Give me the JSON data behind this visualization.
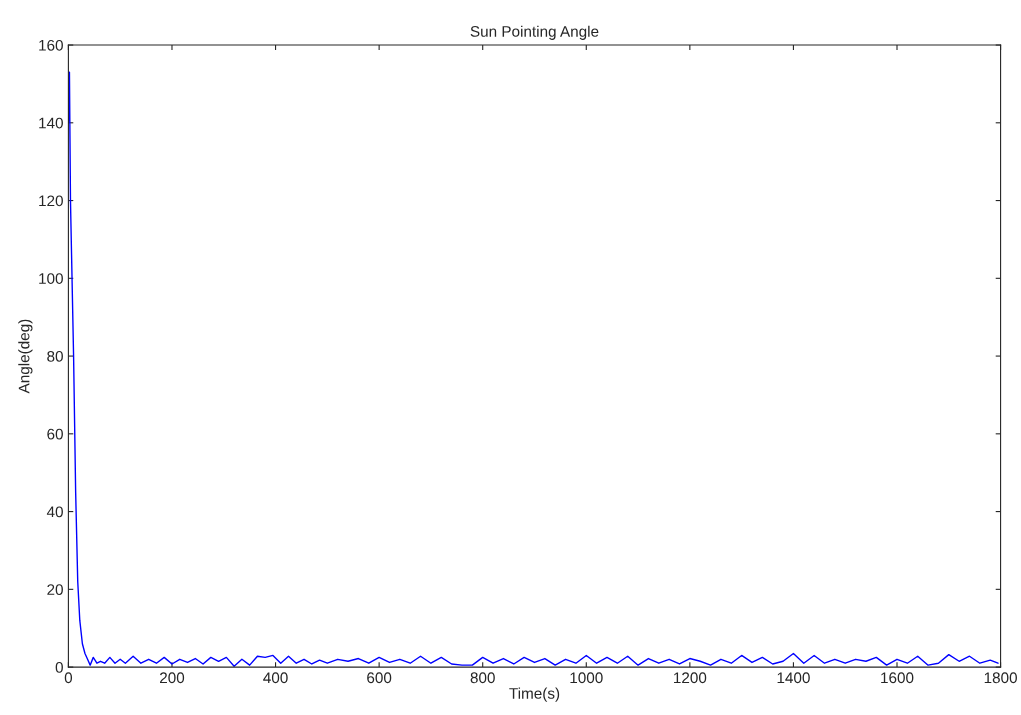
{
  "chart_data": {
    "type": "line",
    "title": "Sun Pointing Angle",
    "xlabel": "Time(s)",
    "ylabel": "Angle(deg)",
    "xlim": [
      0,
      1800
    ],
    "ylim": [
      0,
      160
    ],
    "xticks": [
      0,
      200,
      400,
      600,
      800,
      1000,
      1200,
      1400,
      1600,
      1800
    ],
    "yticks": [
      0,
      20,
      40,
      60,
      80,
      100,
      120,
      140,
      160
    ],
    "grid": false,
    "legend": false,
    "series": [
      {
        "color": "#0000ff",
        "line_style": "solid",
        "x": [
          0,
          2,
          4,
          7,
          10,
          14,
          18,
          22,
          27,
          32,
          37,
          42,
          48,
          55,
          62,
          70,
          80,
          90,
          100,
          110,
          125,
          140,
          155,
          170,
          185,
          200,
          215,
          230,
          245,
          260,
          275,
          290,
          305,
          320,
          335,
          350,
          365,
          380,
          395,
          410,
          425,
          440,
          455,
          470,
          485,
          500,
          520,
          540,
          560,
          580,
          600,
          620,
          640,
          660,
          680,
          700,
          720,
          740,
          760,
          780,
          800,
          820,
          840,
          860,
          880,
          900,
          920,
          940,
          960,
          980,
          1000,
          1020,
          1040,
          1060,
          1080,
          1100,
          1120,
          1140,
          1160,
          1180,
          1200,
          1220,
          1240,
          1260,
          1280,
          1300,
          1320,
          1340,
          1360,
          1380,
          1400,
          1420,
          1440,
          1460,
          1480,
          1500,
          1520,
          1540,
          1560,
          1580,
          1600,
          1620,
          1640,
          1660,
          1680,
          1700,
          1720,
          1740,
          1760,
          1780,
          1795
        ],
        "values": [
          140,
          153,
          120,
          100,
          80,
          45,
          22,
          12,
          6,
          3.5,
          2,
          0.5,
          2.5,
          1,
          1.5,
          1,
          2.5,
          1,
          2,
          1,
          2.8,
          1,
          2,
          1,
          2.5,
          0.8,
          2,
          1.2,
          2.2,
          0.8,
          2.5,
          1.5,
          2.5,
          0.2,
          2,
          0.5,
          2.8,
          2.5,
          3,
          1,
          2.8,
          1,
          2,
          0.8,
          1.8,
          1,
          2,
          1.5,
          2.2,
          1,
          2.5,
          1.2,
          2,
          1,
          2.8,
          1,
          2.5,
          0.8,
          0.5,
          0.5,
          2.5,
          1,
          2.2,
          0.8,
          2.5,
          1.2,
          2.2,
          0.5,
          2,
          1,
          3,
          1,
          2.5,
          1,
          2.8,
          0.5,
          2.2,
          1,
          2,
          0.8,
          2.2,
          1.5,
          0.5,
          2,
          1,
          3,
          1.2,
          2.5,
          0.8,
          1.5,
          3.5,
          1,
          3,
          1,
          2,
          1,
          2,
          1.5,
          2.5,
          0.5,
          2,
          1,
          2.8,
          0.5,
          1,
          3.2,
          1.5,
          2.8,
          1,
          1.8,
          1
        ]
      }
    ]
  }
}
